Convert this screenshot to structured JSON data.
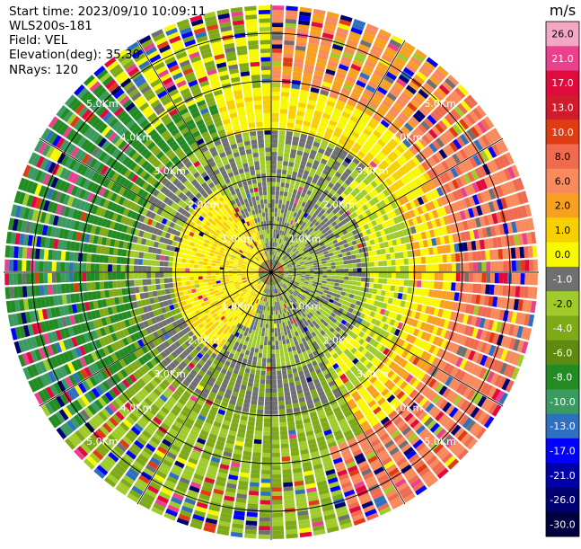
{
  "header": {
    "start_time": "Start time: 2023/09/10 10:09:11",
    "instrument": "WLS200s-181",
    "field": "Field: VEL",
    "elevation": "Elevation(deg): 35.30",
    "nrays": "NRays: 120"
  },
  "chart_data": {
    "type": "heatmap",
    "projection": "polar (PPI)",
    "field": "VEL",
    "n_rays": 120,
    "max_range_km": 5.6,
    "range_rings_km": [
      1.0,
      2.0,
      3.0,
      4.0,
      5.0
    ],
    "ring_labels": [
      "1.0Km",
      "2.0Km",
      "3.0Km",
      "4.0Km",
      "5.0Km"
    ],
    "grid": true,
    "colorbar": {
      "unit": "m/s",
      "position": "right",
      "ticks": [
        "26.0",
        "21.0",
        "17.0",
        "13.0",
        "10.0",
        "8.0",
        "6.0",
        "2.0",
        "1.0",
        "0.0",
        "-1.0",
        "-2.0",
        "-4.0",
        "-6.0",
        "-8.0",
        "-10.0",
        "-13.0",
        "-17.0",
        "-21.0",
        "-26.0",
        "-30.0"
      ],
      "colors": [
        "#f2a8c4",
        "#e9418e",
        "#e10a3c",
        "#d11a2a",
        "#e03c14",
        "#f06a50",
        "#f88a5c",
        "#f8a020",
        "#f8d000",
        "#f8f800",
        "#707070",
        "#9fcc2a",
        "#7faa18",
        "#5e8a10",
        "#228b22",
        "#3a9a60",
        "#2e6fc0",
        "#0000ff",
        "#0000a8",
        "#000070",
        "#000040"
      ]
    },
    "sectors": [
      {
        "azimuth_from_deg": 0,
        "azimuth_to_deg": 40,
        "dominant_m_s": "10.0 to 2.0"
      },
      {
        "azimuth_from_deg": 40,
        "azimuth_to_deg": 160,
        "dominant_m_s": "10.0 to 6.0"
      },
      {
        "azimuth_from_deg": 160,
        "azimuth_to_deg": 225,
        "dominant_m_s": "-2.0 to -8.0"
      },
      {
        "azimuth_from_deg": 225,
        "azimuth_to_deg": 320,
        "dominant_m_s": "-6.0 to -10.0"
      },
      {
        "azimuth_from_deg": 320,
        "azimuth_to_deg": 360,
        "dominant_m_s": "2.0 to -2.0"
      }
    ]
  }
}
